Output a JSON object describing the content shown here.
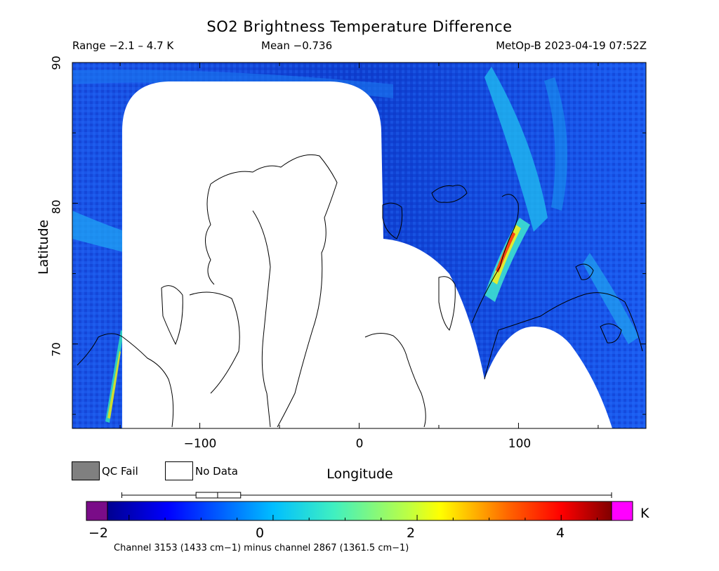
{
  "header": {
    "title": "SO2 Brightness Temperature Difference",
    "range": "Range −2.1 – 4.7 K",
    "mean": "Mean −0.736",
    "satellite_time": "MetOp-B 2023-04-19 07:52Z"
  },
  "legend": {
    "qc_fail": "QC Fail",
    "no_data": "No Data",
    "qc_fail_color": "#808080",
    "no_data_color": "#ffffff"
  },
  "colorbar": {
    "unit": "K",
    "ticks": [
      "−2",
      "0",
      "2",
      "4"
    ],
    "tick_values": [
      -2,
      0,
      2,
      4
    ],
    "min": -2.3,
    "max": 4.7,
    "under_color": "#7a0c88",
    "over_color": "#ff00ff",
    "boxplot": {
      "whisker_low": -2.1,
      "q1": -1.07,
      "median": -0.77,
      "q3": -0.45,
      "whisker_high": 4.7
    }
  },
  "footnote": "Channel 3153 (1433 cm−1) minus channel 2867 (1361.5 cm−1)",
  "chart_data": {
    "type": "heatmap",
    "title": "SO2 Brightness Temperature Difference",
    "xlabel": "Longitude",
    "ylabel": "Latitude",
    "xlim": [
      -180,
      180
    ],
    "ylim": [
      64,
      90
    ],
    "xticks": [
      -100,
      0,
      100
    ],
    "xtick_labels": [
      "−100",
      "0",
      "100"
    ],
    "yticks": [
      70,
      80,
      90
    ],
    "ytick_labels": [
      "70",
      "80",
      "90"
    ],
    "value_range": [
      -2.1,
      4.7
    ],
    "mean": -0.736,
    "units": "K",
    "hotspots": [
      {
        "lon": 93,
        "lat": 76.5,
        "value": 4.2
      },
      {
        "lon": 91,
        "lat": 75.5,
        "value": 3.5
      },
      {
        "lon": 95,
        "lat": 78,
        "value": 2.8
      },
      {
        "lon": -158,
        "lat": 67,
        "value": 2.4
      }
    ]
  }
}
